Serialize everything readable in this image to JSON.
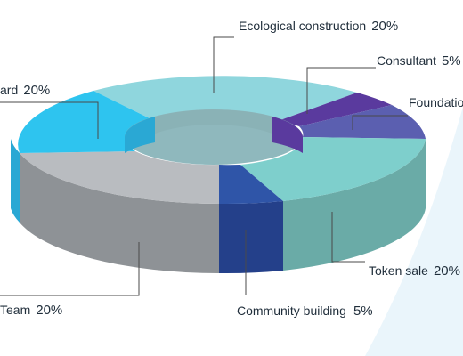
{
  "chart_data": {
    "type": "pie",
    "style": "3d-donut",
    "slices": [
      {
        "label": "Ecological construction",
        "percent": "20%",
        "value": 20,
        "color": "#8fd6dd"
      },
      {
        "label": "Consultant",
        "percent": "5%",
        "value": 5,
        "color": "#5a3a9e"
      },
      {
        "label": "Foundation",
        "percent": "",
        "value": 10,
        "color": "#5b5fb0"
      },
      {
        "label": "Token sale",
        "percent": "20%",
        "value": 20,
        "color": "#7ecfcc"
      },
      {
        "label": "Community building",
        "percent": "5%",
        "value": 5,
        "color": "#2f55a8"
      },
      {
        "label": "Team",
        "percent": "20%",
        "value": 20,
        "color": "#b9bcc0"
      },
      {
        "label": "ard",
        "percent": "20%",
        "value": 20,
        "color": "#2ec4ef"
      }
    ]
  }
}
